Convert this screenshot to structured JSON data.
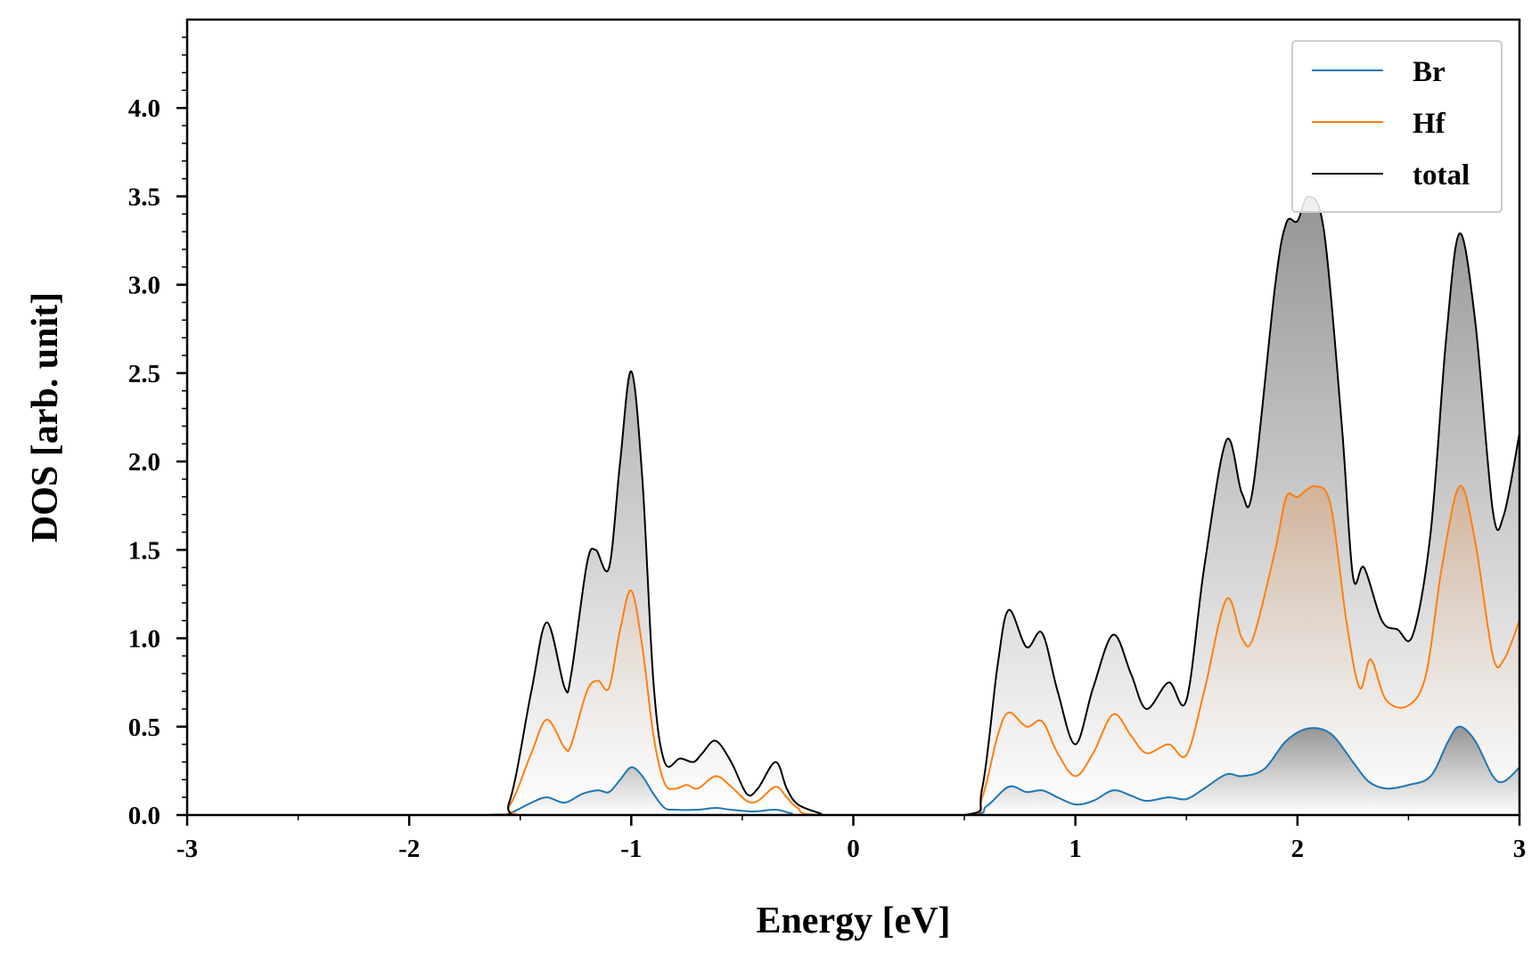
{
  "chart_data": {
    "type": "line",
    "xlabel": "Energy [eV]",
    "ylabel": "DOS [arb. unit]",
    "xlim": [
      -3,
      3
    ],
    "ylim": [
      0,
      4.5
    ],
    "x_ticks": [
      -3,
      -2,
      -1,
      0,
      1,
      2,
      3
    ],
    "x_tick_labels": [
      "-3",
      "-2",
      "-1",
      "0",
      "1",
      "2",
      "3"
    ],
    "y_ticks": [
      0,
      0.5,
      1,
      1.5,
      2,
      2.5,
      3,
      3.5,
      4
    ],
    "y_tick_labels": [
      "0.0",
      "0.5",
      "1.0",
      "1.5",
      "2.0",
      "2.5",
      "3.0",
      "3.5",
      "4.0"
    ],
    "legend_position": "top-right",
    "grid": false,
    "series": [
      {
        "name": "Br",
        "color": "#1f77b4",
        "fill": "gray-gradient",
        "points": [
          [
            -3.0,
            0
          ],
          [
            -1.65,
            0
          ],
          [
            -1.55,
            0.01
          ],
          [
            -1.45,
            0.07
          ],
          [
            -1.38,
            0.1
          ],
          [
            -1.3,
            0.07
          ],
          [
            -1.22,
            0.12
          ],
          [
            -1.15,
            0.14
          ],
          [
            -1.1,
            0.13
          ],
          [
            -1.05,
            0.2
          ],
          [
            -1.0,
            0.27
          ],
          [
            -0.95,
            0.22
          ],
          [
            -0.9,
            0.12
          ],
          [
            -0.85,
            0.04
          ],
          [
            -0.8,
            0.03
          ],
          [
            -0.7,
            0.03
          ],
          [
            -0.62,
            0.04
          ],
          [
            -0.55,
            0.03
          ],
          [
            -0.45,
            0.02
          ],
          [
            -0.35,
            0.03
          ],
          [
            -0.28,
            0.01
          ],
          [
            -0.2,
            0
          ],
          [
            0.5,
            0
          ],
          [
            0.6,
            0.05
          ],
          [
            0.7,
            0.16
          ],
          [
            0.78,
            0.13
          ],
          [
            0.85,
            0.14
          ],
          [
            0.92,
            0.1
          ],
          [
            1.0,
            0.06
          ],
          [
            1.08,
            0.08
          ],
          [
            1.17,
            0.14
          ],
          [
            1.25,
            0.11
          ],
          [
            1.32,
            0.08
          ],
          [
            1.42,
            0.1
          ],
          [
            1.5,
            0.09
          ],
          [
            1.58,
            0.15
          ],
          [
            1.68,
            0.23
          ],
          [
            1.75,
            0.22
          ],
          [
            1.85,
            0.26
          ],
          [
            1.95,
            0.42
          ],
          [
            2.05,
            0.49
          ],
          [
            2.15,
            0.46
          ],
          [
            2.25,
            0.3
          ],
          [
            2.32,
            0.19
          ],
          [
            2.4,
            0.15
          ],
          [
            2.5,
            0.17
          ],
          [
            2.6,
            0.22
          ],
          [
            2.68,
            0.42
          ],
          [
            2.73,
            0.5
          ],
          [
            2.8,
            0.42
          ],
          [
            2.88,
            0.22
          ],
          [
            2.93,
            0.19
          ],
          [
            3.0,
            0.27
          ]
        ]
      },
      {
        "name": "Hf",
        "color": "#ff7f0e",
        "fill": "orange-gradient",
        "points": [
          [
            -3.0,
            0
          ],
          [
            -1.65,
            0
          ],
          [
            -1.55,
            0.05
          ],
          [
            -1.45,
            0.35
          ],
          [
            -1.38,
            0.54
          ],
          [
            -1.3,
            0.38
          ],
          [
            -1.27,
            0.4
          ],
          [
            -1.2,
            0.7
          ],
          [
            -1.15,
            0.76
          ],
          [
            -1.1,
            0.72
          ],
          [
            -1.05,
            1.05
          ],
          [
            -1.0,
            1.27
          ],
          [
            -0.95,
            0.95
          ],
          [
            -0.9,
            0.45
          ],
          [
            -0.85,
            0.18
          ],
          [
            -0.8,
            0.15
          ],
          [
            -0.75,
            0.17
          ],
          [
            -0.7,
            0.15
          ],
          [
            -0.62,
            0.22
          ],
          [
            -0.55,
            0.16
          ],
          [
            -0.48,
            0.08
          ],
          [
            -0.43,
            0.08
          ],
          [
            -0.35,
            0.16
          ],
          [
            -0.3,
            0.1
          ],
          [
            -0.25,
            0.04
          ],
          [
            -0.15,
            0
          ],
          [
            0.5,
            0
          ],
          [
            0.58,
            0.1
          ],
          [
            0.65,
            0.45
          ],
          [
            0.7,
            0.58
          ],
          [
            0.78,
            0.5
          ],
          [
            0.85,
            0.53
          ],
          [
            0.92,
            0.35
          ],
          [
            1.0,
            0.22
          ],
          [
            1.08,
            0.35
          ],
          [
            1.17,
            0.57
          ],
          [
            1.25,
            0.45
          ],
          [
            1.32,
            0.35
          ],
          [
            1.42,
            0.4
          ],
          [
            1.5,
            0.34
          ],
          [
            1.58,
            0.7
          ],
          [
            1.68,
            1.22
          ],
          [
            1.75,
            1.0
          ],
          [
            1.8,
            1.0
          ],
          [
            1.9,
            1.5
          ],
          [
            1.95,
            1.8
          ],
          [
            2.0,
            1.8
          ],
          [
            2.08,
            1.86
          ],
          [
            2.15,
            1.75
          ],
          [
            2.22,
            1.1
          ],
          [
            2.28,
            0.72
          ],
          [
            2.33,
            0.88
          ],
          [
            2.4,
            0.65
          ],
          [
            2.5,
            0.62
          ],
          [
            2.58,
            0.8
          ],
          [
            2.65,
            1.4
          ],
          [
            2.73,
            1.86
          ],
          [
            2.8,
            1.55
          ],
          [
            2.88,
            0.9
          ],
          [
            2.93,
            0.88
          ],
          [
            3.0,
            1.1
          ]
        ]
      },
      {
        "name": "total",
        "color": "#000000",
        "fill": "gray-gradient",
        "points": [
          [
            -3.0,
            0
          ],
          [
            -1.65,
            0
          ],
          [
            -1.55,
            0.07
          ],
          [
            -1.45,
            0.7
          ],
          [
            -1.38,
            1.09
          ],
          [
            -1.3,
            0.72
          ],
          [
            -1.27,
            0.8
          ],
          [
            -1.2,
            1.42
          ],
          [
            -1.16,
            1.5
          ],
          [
            -1.1,
            1.4
          ],
          [
            -1.05,
            2.0
          ],
          [
            -1.0,
            2.51
          ],
          [
            -0.95,
            1.9
          ],
          [
            -0.9,
            0.75
          ],
          [
            -0.85,
            0.3
          ],
          [
            -0.78,
            0.32
          ],
          [
            -0.72,
            0.3
          ],
          [
            -0.68,
            0.35
          ],
          [
            -0.62,
            0.42
          ],
          [
            -0.55,
            0.3
          ],
          [
            -0.48,
            0.12
          ],
          [
            -0.43,
            0.15
          ],
          [
            -0.35,
            0.3
          ],
          [
            -0.3,
            0.15
          ],
          [
            -0.25,
            0.06
          ],
          [
            -0.15,
            0.01
          ],
          [
            -0.1,
            0
          ],
          [
            0.5,
            0
          ],
          [
            0.58,
            0.15
          ],
          [
            0.65,
            0.85
          ],
          [
            0.7,
            1.16
          ],
          [
            0.78,
            0.95
          ],
          [
            0.85,
            1.03
          ],
          [
            0.92,
            0.7
          ],
          [
            1.0,
            0.4
          ],
          [
            1.08,
            0.72
          ],
          [
            1.17,
            1.02
          ],
          [
            1.25,
            0.8
          ],
          [
            1.32,
            0.6
          ],
          [
            1.42,
            0.75
          ],
          [
            1.5,
            0.65
          ],
          [
            1.58,
            1.4
          ],
          [
            1.68,
            2.12
          ],
          [
            1.75,
            1.82
          ],
          [
            1.8,
            1.85
          ],
          [
            1.9,
            3.0
          ],
          [
            1.95,
            3.35
          ],
          [
            2.0,
            3.36
          ],
          [
            2.05,
            3.5
          ],
          [
            2.12,
            3.3
          ],
          [
            2.2,
            2.2
          ],
          [
            2.25,
            1.35
          ],
          [
            2.3,
            1.4
          ],
          [
            2.38,
            1.1
          ],
          [
            2.45,
            1.05
          ],
          [
            2.52,
            1.02
          ],
          [
            2.6,
            1.6
          ],
          [
            2.67,
            2.7
          ],
          [
            2.73,
            3.29
          ],
          [
            2.8,
            2.8
          ],
          [
            2.88,
            1.72
          ],
          [
            2.93,
            1.7
          ],
          [
            3.0,
            2.16
          ]
        ]
      }
    ]
  }
}
